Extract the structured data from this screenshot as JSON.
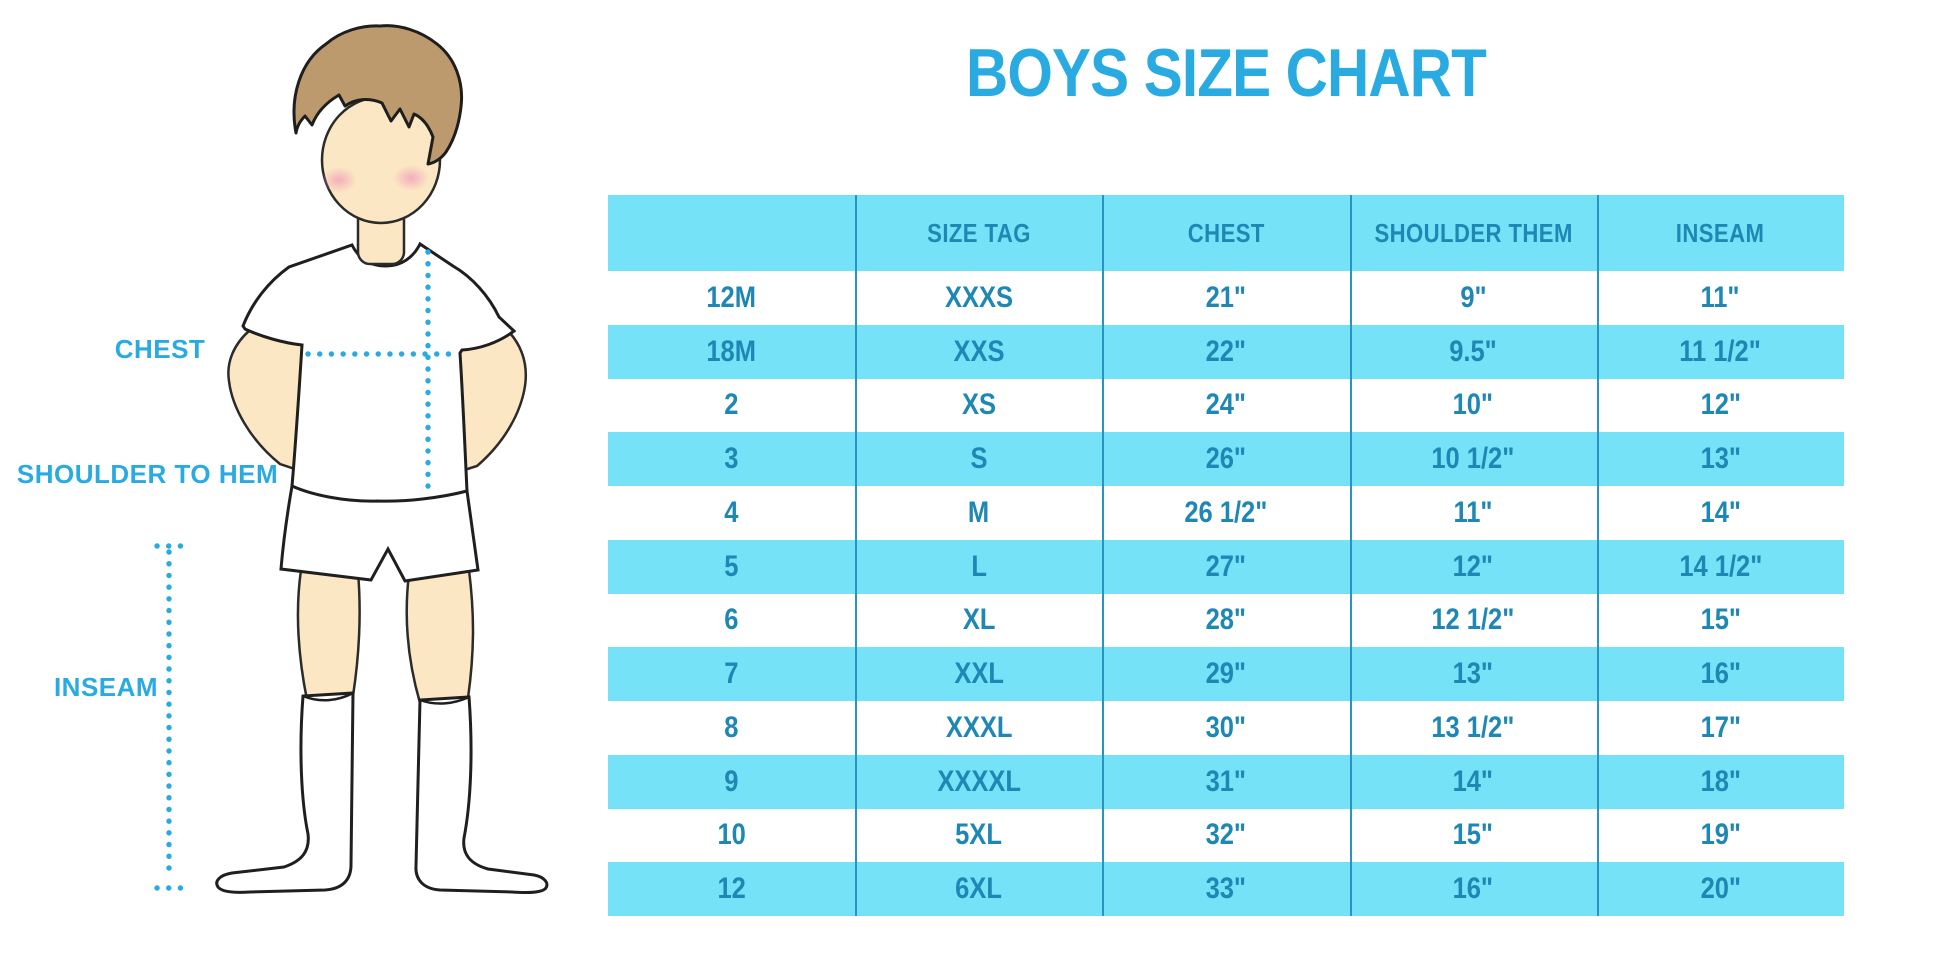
{
  "title": "BOYS SIZE CHART",
  "figure": {
    "labels": {
      "chest": "CHEST",
      "shoulder_to_hem": "SHOULDER TO HEM",
      "inseam": "INSEAM"
    }
  },
  "colors": {
    "accent_blue": "#29ABE2",
    "table_stripe_cyan": "#76E2F8",
    "table_text_teal": "#1E87B4",
    "table_divider": "#2695C3",
    "hair_brown": "#BC9A6E",
    "skin_tone": "#FBE7C3",
    "blush_pink": "#F2A4BB",
    "outline_dark": "#2B2B2B"
  },
  "chart_data": {
    "type": "table",
    "title": "BOYS SIZE CHART",
    "columns": [
      "",
      "SIZE TAG",
      "CHEST",
      "SHOULDER THEM",
      "INSEAM"
    ],
    "rows": [
      [
        "12M",
        "XXXS",
        "21\"",
        "9\"",
        "11\""
      ],
      [
        "18M",
        "XXS",
        "22\"",
        "9.5\"",
        "11 1/2\""
      ],
      [
        "2",
        "XS",
        "24\"",
        "10\"",
        "12\""
      ],
      [
        "3",
        "S",
        "26\"",
        "10 1/2\"",
        "13\""
      ],
      [
        "4",
        "M",
        "26 1/2\"",
        "11\"",
        "14\""
      ],
      [
        "5",
        "L",
        "27\"",
        "12\"",
        "14 1/2\""
      ],
      [
        "6",
        "XL",
        "28\"",
        "12 1/2\"",
        "15\""
      ],
      [
        "7",
        "XXL",
        "29\"",
        "13\"",
        "16\""
      ],
      [
        "8",
        "XXXL",
        "30\"",
        "13 1/2\"",
        "17\""
      ],
      [
        "9",
        "XXXXL",
        "31\"",
        "14\"",
        "18\""
      ],
      [
        "10",
        "5XL",
        "32\"",
        "15\"",
        "19\""
      ],
      [
        "12",
        "6XL",
        "33\"",
        "16\"",
        "20\""
      ]
    ],
    "stripe_pattern": "header cyan, then rows alternate white/cyan starting with white",
    "legend_position": "none",
    "grid": "vertical column dividers only"
  }
}
